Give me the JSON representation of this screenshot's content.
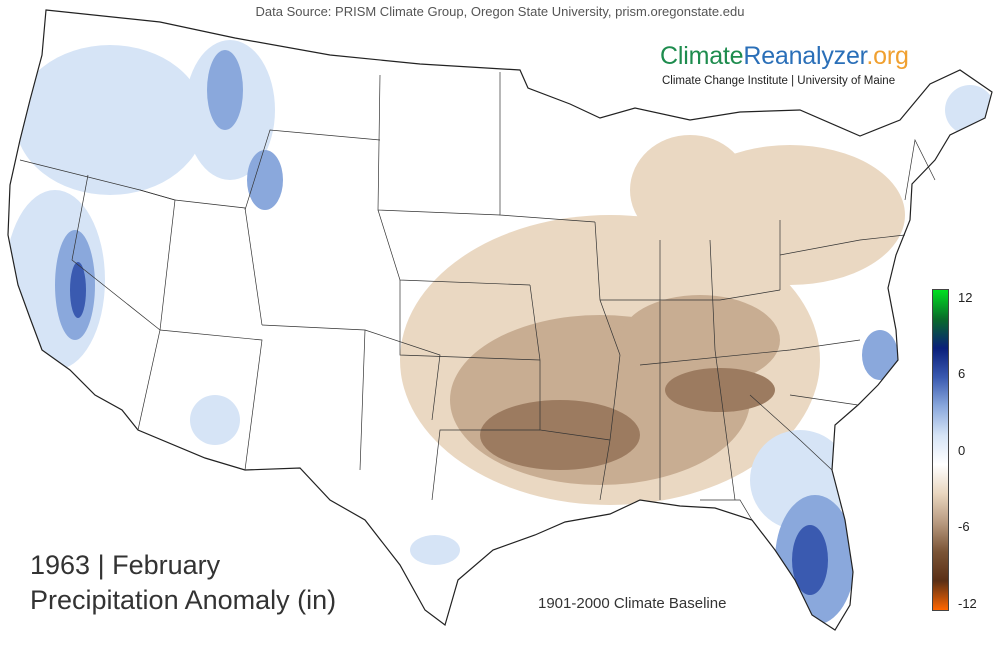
{
  "header": {
    "data_source": "Data Source: PRISM Climate Group, Oregon State University, prism.oregonstate.edu"
  },
  "brand": {
    "part1": "Climate",
    "part2": "Reanalyzer",
    "part3": ".org",
    "subtitle": "Climate Change Institute | University of Maine"
  },
  "title": {
    "line1": "1963 | February",
    "line2": "Precipitation Anomaly (in)"
  },
  "baseline_label": "1901-2000 Climate Baseline",
  "legend": {
    "ticks": [
      "12",
      "6",
      "0",
      "-6",
      "-12"
    ],
    "colors": [
      "#00e020",
      "#0a6a2a",
      "#0a1f7a",
      "#3a5ab0",
      "#8aa8dc",
      "#d6e4f6",
      "#ffffff",
      "#e9d6bf",
      "#b89a80",
      "#7a5436",
      "#5a2f16",
      "#ff6600"
    ]
  },
  "map": {
    "region": "Contiguous United States",
    "colors": {
      "wet_light": "#d6e4f6",
      "wet_mid": "#8aa8dc",
      "wet_dark": "#3a5ab0",
      "dry_light": "#ead8c2",
      "dry_mid": "#c8ad92",
      "dry_dark": "#9c7b60",
      "border": "#222222"
    }
  }
}
